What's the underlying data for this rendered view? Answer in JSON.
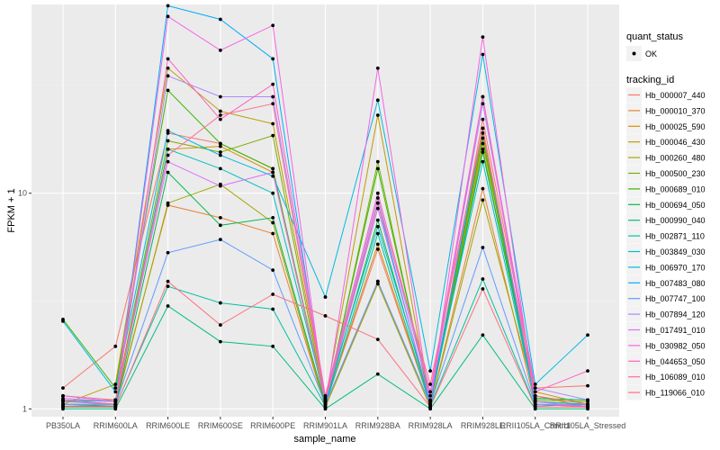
{
  "chart_data": {
    "type": "line",
    "title": "",
    "xlabel": "sample_name",
    "ylabel": "FPKM + 1",
    "yscale": "log10",
    "ylim": [
      0.92,
      75
    ],
    "y_ticks": [
      1,
      10
    ],
    "y_tick_labels": [
      "1",
      "10"
    ],
    "grid": true,
    "legend_position": "right",
    "categories": [
      "PB350LA",
      "RRIM600LA",
      "RRIM600LE",
      "RRIM600SE",
      "RRIM600PE",
      "RRIM901LA",
      "RRIM928BA",
      "RRIM928LA",
      "RRIM928LE",
      "RRII105LA_Control",
      "RRII105LA_Stressed"
    ],
    "point_legend": {
      "title": "quant_status",
      "items": [
        {
          "label": "OK"
        }
      ]
    },
    "color_legend_title": "tracking_id",
    "series": [
      {
        "name": "Hb_000007_440",
        "color": "#F8766D",
        "values": [
          1.25,
          1.95,
          19.0,
          17.0,
          13.0,
          1.05,
          5.5,
          1.05,
          22.0,
          1.25,
          1.28
        ]
      },
      {
        "name": "Hb_000010_370",
        "color": "#EA8331",
        "values": [
          1.05,
          1.05,
          8.8,
          7.7,
          6.5,
          1.02,
          3.9,
          1.02,
          10.5,
          1.05,
          1.02
        ]
      },
      {
        "name": "Hb_000025_590",
        "color": "#D89000",
        "values": [
          1.1,
          1.05,
          16.0,
          16.5,
          12.5,
          1.05,
          5.8,
          1.05,
          19.0,
          1.08,
          1.05
        ]
      },
      {
        "name": "Hb_000046_430",
        "color": "#C09B00",
        "values": [
          1.05,
          1.3,
          38.0,
          24.0,
          21.0,
          1.1,
          23.0,
          1.05,
          17.0,
          1.2,
          1.05
        ]
      },
      {
        "name": "Hb_000260_480",
        "color": "#A3A500",
        "values": [
          1.02,
          1.02,
          9.0,
          11.0,
          7.3,
          1.02,
          3.8,
          1.02,
          9.3,
          1.15,
          1.02
        ]
      },
      {
        "name": "Hb_000500_230",
        "color": "#7CAE00",
        "values": [
          1.08,
          1.1,
          17.5,
          15.5,
          18.5,
          1.05,
          14.0,
          1.05,
          16.0,
          1.1,
          1.08
        ]
      },
      {
        "name": "Hb_000689_010",
        "color": "#39B600",
        "values": [
          2.6,
          1.25,
          30.0,
          17.0,
          13.0,
          1.08,
          13.0,
          1.08,
          18.0,
          1.05,
          1.03
        ]
      },
      {
        "name": "Hb_000694_050",
        "color": "#00BB4E",
        "values": [
          1.05,
          1.03,
          12.5,
          7.1,
          7.7,
          1.05,
          7.5,
          1.05,
          15.5,
          1.12,
          1.1
        ]
      },
      {
        "name": "Hb_000990_040",
        "color": "#00BF7D",
        "values": [
          1.0,
          1.0,
          3.0,
          2.05,
          1.95,
          1.0,
          1.45,
          1.0,
          2.2,
          1.0,
          1.0
        ]
      },
      {
        "name": "Hb_002871_110",
        "color": "#00C1A3",
        "values": [
          1.03,
          1.03,
          3.7,
          3.1,
          2.9,
          1.03,
          6.5,
          1.03,
          4.0,
          1.03,
          1.05
        ]
      },
      {
        "name": "Hb_003849_030",
        "color": "#00BFC4",
        "values": [
          1.1,
          1.08,
          16.0,
          13.0,
          10.0,
          1.1,
          7.0,
          1.1,
          14.0,
          1.08,
          1.05
        ]
      },
      {
        "name": "Hb_006970_170",
        "color": "#00B9E3",
        "values": [
          2.55,
          1.2,
          19.5,
          15.0,
          12.0,
          3.3,
          27.0,
          1.5,
          44.0,
          1.3,
          2.2
        ]
      },
      {
        "name": "Hb_007483_080",
        "color": "#00ADFA",
        "values": [
          1.05,
          1.05,
          74.0,
          64.0,
          42.0,
          1.05,
          9.0,
          1.05,
          20.0,
          1.05,
          1.03
        ]
      },
      {
        "name": "Hb_007747_100",
        "color": "#619CFF",
        "values": [
          1.08,
          1.05,
          5.3,
          6.1,
          4.4,
          1.05,
          3.9,
          1.05,
          5.6,
          1.05,
          1.05
        ]
      },
      {
        "name": "Hb_007894_120",
        "color": "#AE87FF",
        "values": [
          1.15,
          1.08,
          35.0,
          28.0,
          28.0,
          1.12,
          9.5,
          1.15,
          26.0,
          1.25,
          1.1
        ]
      },
      {
        "name": "Hb_017491_010",
        "color": "#DB72FB",
        "values": [
          1.12,
          1.08,
          14.0,
          10.8,
          12.5,
          1.08,
          8.5,
          1.08,
          28.0,
          1.08,
          1.02
        ]
      },
      {
        "name": "Hb_030982_050",
        "color": "#F564E3",
        "values": [
          1.05,
          1.05,
          66.0,
          46.0,
          60.0,
          1.05,
          38.0,
          1.05,
          53.0,
          1.05,
          1.03
        ]
      },
      {
        "name": "Hb_044653_050",
        "color": "#FF61C3",
        "values": [
          1.1,
          1.05,
          42.0,
          22.0,
          32.0,
          1.15,
          10.0,
          1.2,
          28.0,
          1.2,
          1.5
        ]
      },
      {
        "name": "Hb_106089_010",
        "color": "#FF6C91",
        "values": [
          1.15,
          1.1,
          15.0,
          23.0,
          26.0,
          1.1,
          9.0,
          1.3,
          20.0,
          1.15,
          1.05
        ]
      },
      {
        "name": "Hb_119066_010",
        "color": "#FC717F",
        "values": [
          1.02,
          1.02,
          3.9,
          2.45,
          3.4,
          2.7,
          2.1,
          1.02,
          3.6,
          1.02,
          1.02
        ]
      }
    ]
  }
}
